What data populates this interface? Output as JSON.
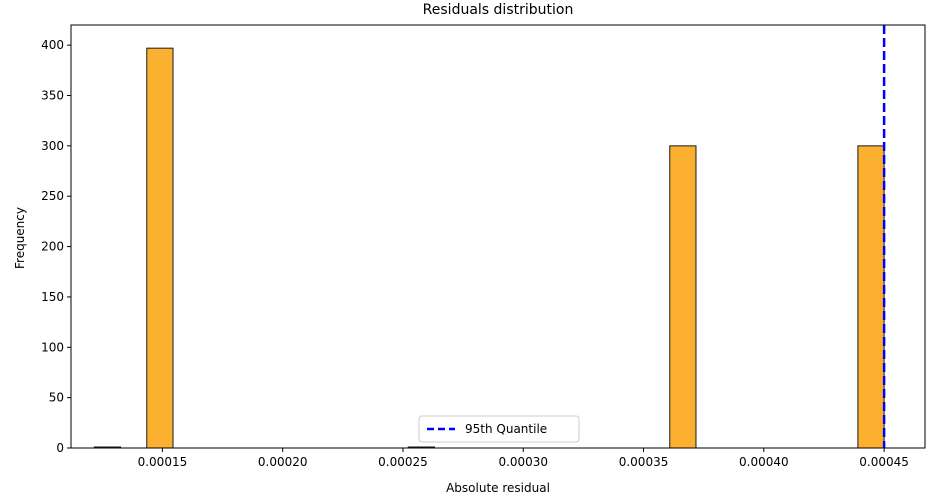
{
  "chart_data": {
    "type": "bar",
    "title": "Residuals distribution",
    "xlabel": "Absolute residual",
    "ylabel": "Frequency",
    "xlim": [
      0.000112,
      0.000467
    ],
    "ylim": [
      0,
      420
    ],
    "xticks": [
      0.00015,
      0.0002,
      0.00025,
      0.0003,
      0.00035,
      0.0004,
      0.00045
    ],
    "xtick_labels": [
      "0.00015",
      "0.00020",
      "0.00025",
      "0.00030",
      "0.00035",
      "0.00040",
      "0.00045"
    ],
    "yticks": [
      0,
      50,
      100,
      150,
      200,
      250,
      300,
      350,
      400
    ],
    "ytick_labels": [
      "0",
      "50",
      "100",
      "150",
      "200",
      "250",
      "300",
      "350",
      "400"
    ],
    "bin_width": 1.09e-05,
    "bins": [
      {
        "x0": 0.0001217,
        "count": 1
      },
      {
        "x0": 0.0001435,
        "count": 397
      },
      {
        "x0": 0.0002522,
        "count": 1
      },
      {
        "x0": 0.0003609,
        "count": 300
      },
      {
        "x0": 0.0004391,
        "count": 300
      }
    ],
    "bar_color": "#fbb030",
    "bar_edge_color": "#1a1a1a",
    "quantile_line": {
      "name": "95th Quantile",
      "x": 0.00045,
      "color": "#0000ff",
      "style": "dashed"
    },
    "legend": {
      "placement": "lower center",
      "entries": [
        "95th Quantile"
      ]
    },
    "grid": false
  }
}
